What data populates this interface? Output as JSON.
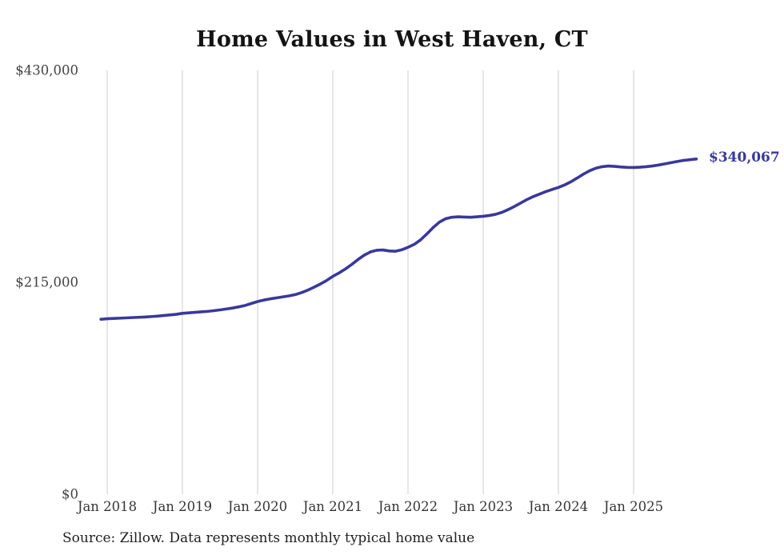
{
  "title": "Home Values in West Haven, CT",
  "end_label": "$340,067",
  "source_note": "Source: Zillow. Data represents monthly typical home value",
  "colors": {
    "line": "#39389b",
    "end_label": "#39389b",
    "grid": "#cccccc",
    "title": "#141414",
    "tick": "#3c3c3c",
    "background": "#ffffff"
  },
  "y_axis": {
    "ticks": [
      {
        "label": "$430,000",
        "value": 430000
      },
      {
        "label": "$215,000",
        "value": 215000
      },
      {
        "label": "$0",
        "value": 0
      }
    ]
  },
  "x_axis": {
    "ticks": [
      {
        "label": "Jan 2018"
      },
      {
        "label": "Jan 2019"
      },
      {
        "label": "Jan 2020"
      },
      {
        "label": "Jan 2021"
      },
      {
        "label": "Jan 2022"
      },
      {
        "label": "Jan 2023"
      },
      {
        "label": "Jan 2024"
      },
      {
        "label": "Jan 2025"
      }
    ]
  },
  "chart_data": {
    "type": "line",
    "title": "Home Values in West Haven, CT",
    "xlabel": "",
    "ylabel": "",
    "ylim": [
      0,
      430000
    ],
    "grid": "vertical-only",
    "legend": "none",
    "series_name": "Typical home value (monthly, Zillow)",
    "last_point_label": "$340,067",
    "x": [
      "2017-12",
      "2018-01",
      "2018-02",
      "2018-03",
      "2018-04",
      "2018-05",
      "2018-06",
      "2018-07",
      "2018-08",
      "2018-09",
      "2018-10",
      "2018-11",
      "2018-12",
      "2019-01",
      "2019-02",
      "2019-03",
      "2019-04",
      "2019-05",
      "2019-06",
      "2019-07",
      "2019-08",
      "2019-09",
      "2019-10",
      "2019-11",
      "2019-12",
      "2020-01",
      "2020-02",
      "2020-03",
      "2020-04",
      "2020-05",
      "2020-06",
      "2020-07",
      "2020-08",
      "2020-09",
      "2020-10",
      "2020-11",
      "2020-12",
      "2021-01",
      "2021-02",
      "2021-03",
      "2021-04",
      "2021-05",
      "2021-06",
      "2021-07",
      "2021-08",
      "2021-09",
      "2021-10",
      "2021-11",
      "2021-12",
      "2022-01",
      "2022-02",
      "2022-03",
      "2022-04",
      "2022-05",
      "2022-06",
      "2022-07",
      "2022-08",
      "2022-09",
      "2022-10",
      "2022-11",
      "2022-12",
      "2023-01",
      "2023-02",
      "2023-03",
      "2023-04",
      "2023-05",
      "2023-06",
      "2023-07",
      "2023-08",
      "2023-09",
      "2023-10",
      "2023-11",
      "2023-12",
      "2024-01",
      "2024-02",
      "2024-03",
      "2024-04",
      "2024-05",
      "2024-06",
      "2024-07",
      "2024-08",
      "2024-09",
      "2024-10",
      "2024-11",
      "2024-12",
      "2025-01",
      "2025-02",
      "2025-03",
      "2025-04",
      "2025-05",
      "2025-06",
      "2025-07",
      "2025-08",
      "2025-09",
      "2025-10",
      "2025-11"
    ],
    "values": [
      177500,
      178000,
      178300,
      178600,
      178900,
      179200,
      179500,
      179800,
      180200,
      180700,
      181300,
      181900,
      182500,
      183500,
      184000,
      184500,
      185000,
      185500,
      186200,
      187000,
      187900,
      188900,
      190100,
      191500,
      193500,
      195500,
      197000,
      198200,
      199200,
      200200,
      201200,
      202500,
      204500,
      207000,
      210000,
      213200,
      216800,
      221000,
      224500,
      228500,
      233000,
      238000,
      242500,
      245800,
      247500,
      247800,
      246800,
      246500,
      248000,
      250500,
      253500,
      258000,
      264000,
      270500,
      276000,
      279500,
      281000,
      281500,
      281200,
      281000,
      281500,
      282000,
      282800,
      284000,
      286000,
      288800,
      292000,
      295500,
      299000,
      302000,
      304500,
      307000,
      309200,
      311200,
      313800,
      317000,
      320800,
      324800,
      328200,
      330800,
      332300,
      333000,
      332600,
      332000,
      331600,
      331500,
      331800,
      332300,
      333000,
      334000,
      335200,
      336400,
      337600,
      338700,
      339400,
      340067
    ]
  }
}
